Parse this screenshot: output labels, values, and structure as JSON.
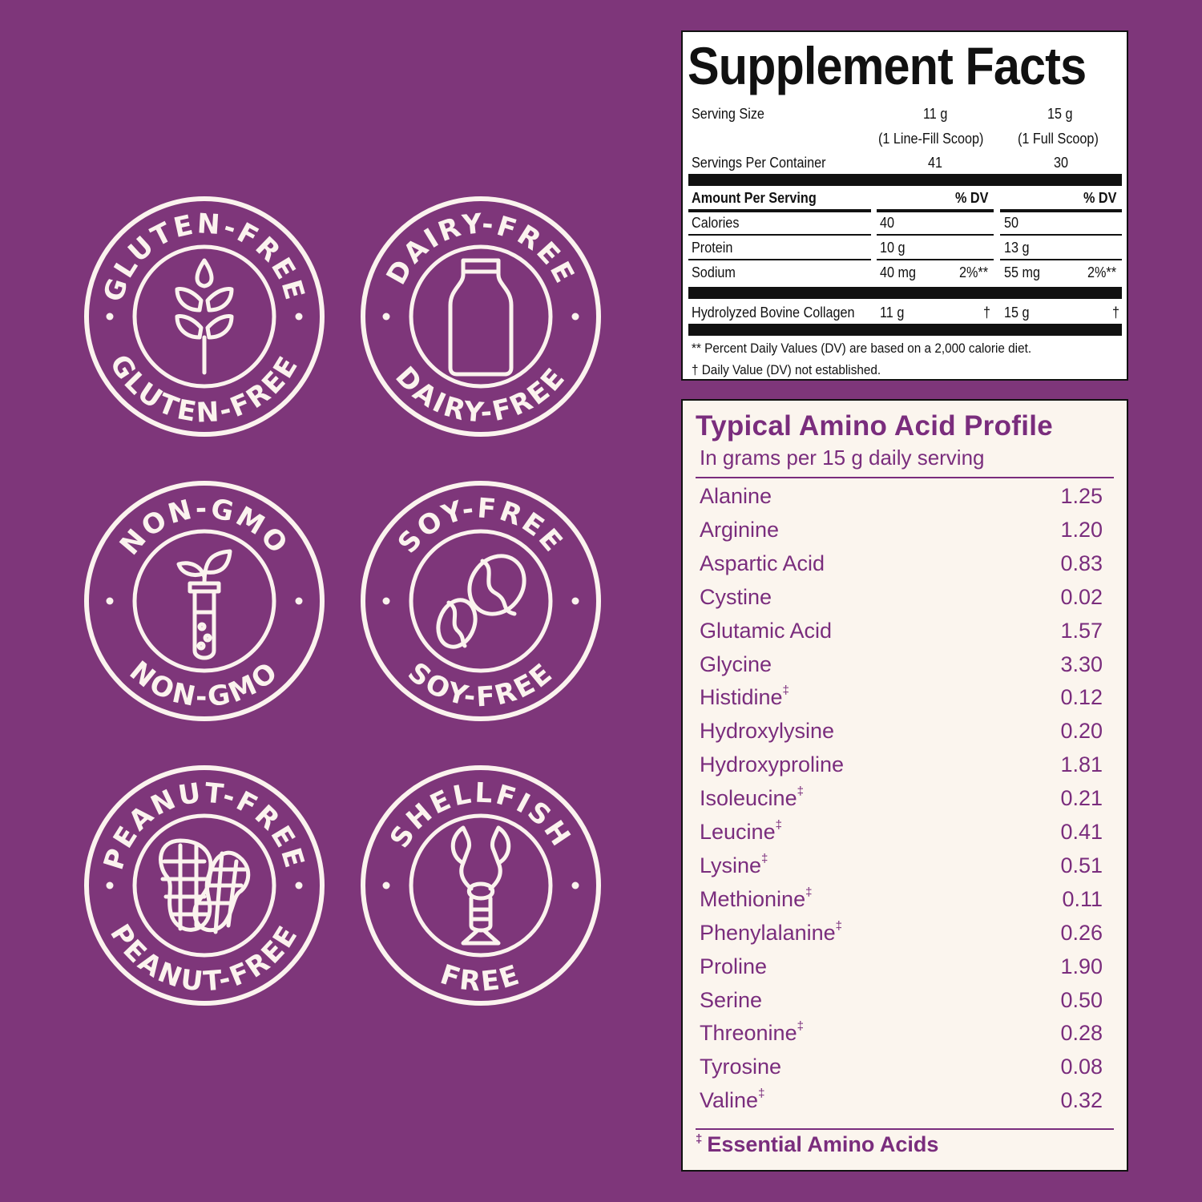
{
  "colors": {
    "background": "#7e367a",
    "cream": "#fbf3ee",
    "amino_text": "#7a2d7d"
  },
  "badges": [
    {
      "top": "GLUTEN-FREE",
      "bottom": "GLUTEN-FREE",
      "icon": "wheat-icon"
    },
    {
      "top": "DAIRY-FREE",
      "bottom": "DAIRY-FREE",
      "icon": "milk-bottle-icon"
    },
    {
      "top": "NON-GMO",
      "bottom": "NON-GMO",
      "icon": "sprout-test-tube-icon"
    },
    {
      "top": "SOY-FREE",
      "bottom": "SOY-FREE",
      "icon": "soy-beans-icon"
    },
    {
      "top": "PEANUT-FREE",
      "bottom": "PEANUT-FREE",
      "icon": "peanut-icon"
    },
    {
      "top": "SHELLFISH",
      "bottom": "FREE",
      "icon": "lobster-icon"
    }
  ],
  "facts": {
    "title": "Supplement Facts",
    "serving_size_label": "Serving Size",
    "serving_size": [
      "11 g",
      "15 g"
    ],
    "serving_desc": [
      "(1 Line-Fill Scoop)",
      "(1 Full Scoop)"
    ],
    "servings_label": "Servings Per Container",
    "servings": [
      "41",
      "30"
    ],
    "amount_label": "Amount Per Serving",
    "dv_label": "% DV",
    "rows": [
      {
        "name": "Calories",
        "a": "40",
        "a_dv": "",
        "b": "50",
        "b_dv": ""
      },
      {
        "name": "Protein",
        "a": "10 g",
        "a_dv": "",
        "b": "13 g",
        "b_dv": ""
      },
      {
        "name": "Sodium",
        "a": "40 mg",
        "a_dv": "2%**",
        "b": "55 mg",
        "b_dv": "2%**"
      }
    ],
    "collagen": {
      "name": "Hydrolyzed Bovine Collagen",
      "a": "11 g",
      "a_dv": "†",
      "b": "15 g",
      "b_dv": "†"
    },
    "note1": "** Percent Daily Values (DV) are based on a 2,000 calorie diet.",
    "note2": "† Daily Value (DV) not established."
  },
  "amino": {
    "title": "Typical Amino Acid Profile",
    "subtitle": "In grams per 15 g daily serving",
    "items": [
      {
        "name": "Alanine",
        "mark": "",
        "value": "1.25"
      },
      {
        "name": "Arginine",
        "mark": "",
        "value": "1.20"
      },
      {
        "name": "Aspartic Acid",
        "mark": "",
        "value": "0.83"
      },
      {
        "name": "Cystine",
        "mark": "",
        "value": "0.02"
      },
      {
        "name": "Glutamic Acid",
        "mark": "",
        "value": "1.57"
      },
      {
        "name": "Glycine",
        "mark": "",
        "value": "3.30"
      },
      {
        "name": "Histidine",
        "mark": "‡",
        "value": "0.12"
      },
      {
        "name": "Hydroxylysine",
        "mark": "",
        "value": "0.20"
      },
      {
        "name": "Hydroxyproline",
        "mark": "",
        "value": "1.81"
      },
      {
        "name": "Isoleucine",
        "mark": "‡",
        "value": "0.21"
      },
      {
        "name": "Leucine",
        "mark": "‡",
        "value": "0.41"
      },
      {
        "name": "Lysine",
        "mark": "‡",
        "value": "0.51"
      },
      {
        "name": "Methionine",
        "mark": "‡",
        "value": "0.11"
      },
      {
        "name": "Phenylalanine",
        "mark": "‡",
        "value": "0.26"
      },
      {
        "name": "Proline",
        "mark": "",
        "value": "1.90"
      },
      {
        "name": "Serine",
        "mark": "",
        "value": "0.50"
      },
      {
        "name": "Threonine",
        "mark": "‡",
        "value": "0.28"
      },
      {
        "name": "Tyrosine",
        "mark": "",
        "value": "0.08"
      },
      {
        "name": "Valine",
        "mark": "‡",
        "value": "0.32"
      }
    ],
    "footnote_mark": "‡",
    "footnote": "Essential Amino Acids"
  }
}
